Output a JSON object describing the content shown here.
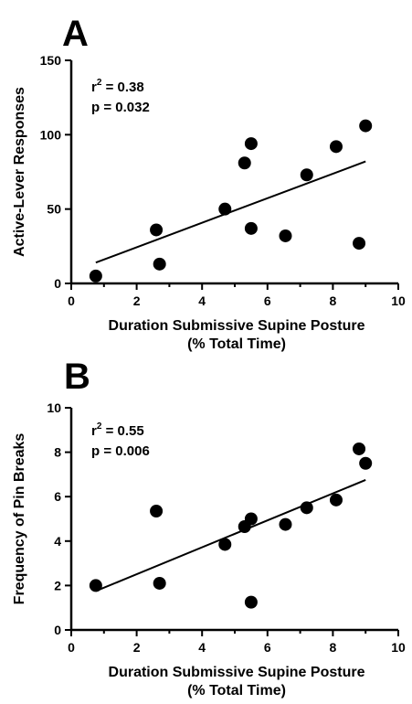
{
  "chart_data": [
    {
      "type": "scatter",
      "panel_label": "A",
      "xlabel": [
        "Duration Submissive Supine Posture",
        "(% Total Time)"
      ],
      "ylabel": "Active-Lever Responses",
      "xlim": [
        0,
        10
      ],
      "ylim": [
        0,
        150
      ],
      "xticks": [
        0,
        2,
        4,
        6,
        8,
        10
      ],
      "yticks": [
        0,
        50,
        100,
        150
      ],
      "grid": false,
      "stats": {
        "r2_label": "r",
        "r2_exp": "2",
        "r2_value": " = 0.38",
        "p_text": "p  = 0.032"
      },
      "points": [
        {
          "x": 0.75,
          "y": 5
        },
        {
          "x": 2.6,
          "y": 36
        },
        {
          "x": 2.7,
          "y": 13
        },
        {
          "x": 4.7,
          "y": 50
        },
        {
          "x": 5.3,
          "y": 81
        },
        {
          "x": 5.5,
          "y": 94
        },
        {
          "x": 5.5,
          "y": 37
        },
        {
          "x": 6.55,
          "y": 32
        },
        {
          "x": 7.2,
          "y": 73
        },
        {
          "x": 8.1,
          "y": 92
        },
        {
          "x": 8.8,
          "y": 27
        },
        {
          "x": 9.0,
          "y": 106
        }
      ],
      "fit_line": {
        "x": [
          0.75,
          9.0
        ],
        "y": [
          14,
          82
        ]
      }
    },
    {
      "type": "scatter",
      "panel_label": "B",
      "xlabel": [
        "Duration Submissive Supine Posture",
        "(% Total Time)"
      ],
      "ylabel": "Frequency of Pin Breaks",
      "xlim": [
        0,
        10
      ],
      "ylim": [
        0,
        10
      ],
      "xticks": [
        0,
        2,
        4,
        6,
        8,
        10
      ],
      "yticks": [
        0,
        2,
        4,
        6,
        8,
        10
      ],
      "grid": false,
      "stats": {
        "r2_label": "r",
        "r2_exp": "2",
        "r2_value": " = 0.55",
        "p_text": "p  = 0.006"
      },
      "points": [
        {
          "x": 0.75,
          "y": 2.0
        },
        {
          "x": 2.6,
          "y": 5.35
        },
        {
          "x": 2.7,
          "y": 2.1
        },
        {
          "x": 4.7,
          "y": 3.85
        },
        {
          "x": 5.3,
          "y": 4.65
        },
        {
          "x": 5.5,
          "y": 5.0
        },
        {
          "x": 5.5,
          "y": 1.25
        },
        {
          "x": 6.55,
          "y": 4.75
        },
        {
          "x": 7.2,
          "y": 5.5
        },
        {
          "x": 8.1,
          "y": 5.85
        },
        {
          "x": 8.8,
          "y": 8.15
        },
        {
          "x": 9.0,
          "y": 7.5
        }
      ],
      "fit_line": {
        "x": [
          0.75,
          9.0
        ],
        "y": [
          1.75,
          6.75
        ]
      }
    }
  ]
}
